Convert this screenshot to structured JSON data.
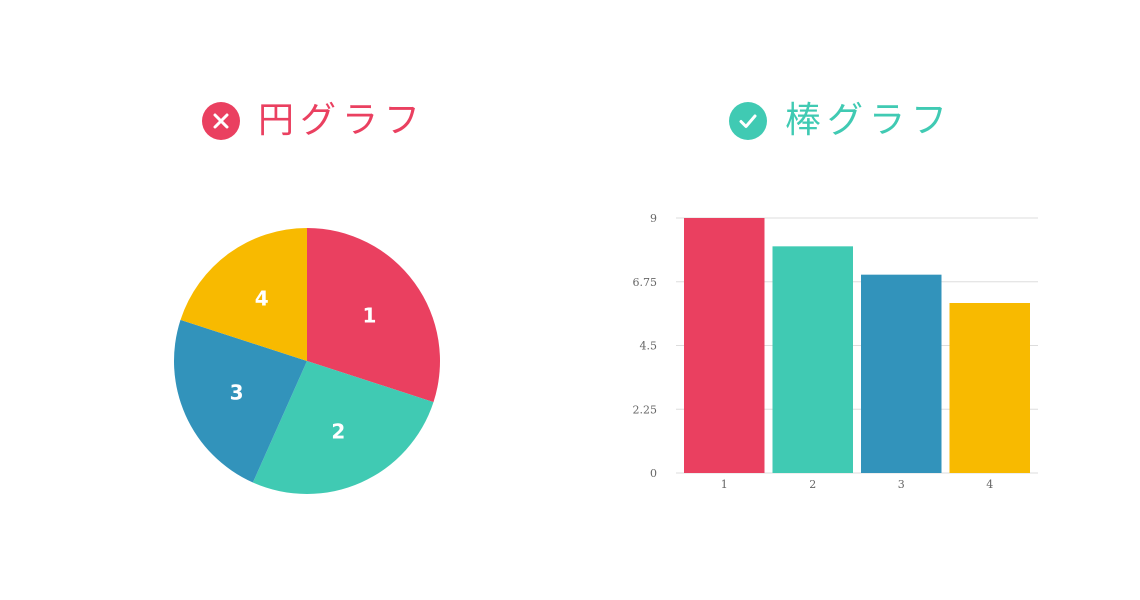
{
  "pie_panel": {
    "title": "円グラフ",
    "badge_icon": "close-icon",
    "badge_color": "#EA4060",
    "title_color": "#EA4060"
  },
  "bar_panel": {
    "title": "棒グラフ",
    "badge_icon": "check-icon",
    "badge_color": "#40CAB3",
    "title_color": "#40CAB3"
  },
  "chart_data": [
    {
      "type": "pie",
      "categories": [
        "1",
        "2",
        "3",
        "4"
      ],
      "values": [
        9,
        8,
        7,
        6
      ],
      "colors": [
        "#EA4060",
        "#40CAB3",
        "#3293BB",
        "#F8BA00"
      ],
      "data_labels": [
        "1",
        "2",
        "3",
        "4"
      ],
      "start_angle_deg": 0,
      "direction": "clockwise"
    },
    {
      "type": "bar",
      "categories": [
        "1",
        "2",
        "3",
        "4"
      ],
      "values": [
        9,
        8,
        7,
        6
      ],
      "colors": [
        "#EA4060",
        "#40CAB3",
        "#3293BB",
        "#F8BA00"
      ],
      "ylim": [
        0,
        9
      ],
      "yticks": [
        "0",
        "2.25",
        "4.5",
        "6.75",
        "9"
      ],
      "grid": true,
      "grid_color": "#dddddd"
    }
  ]
}
